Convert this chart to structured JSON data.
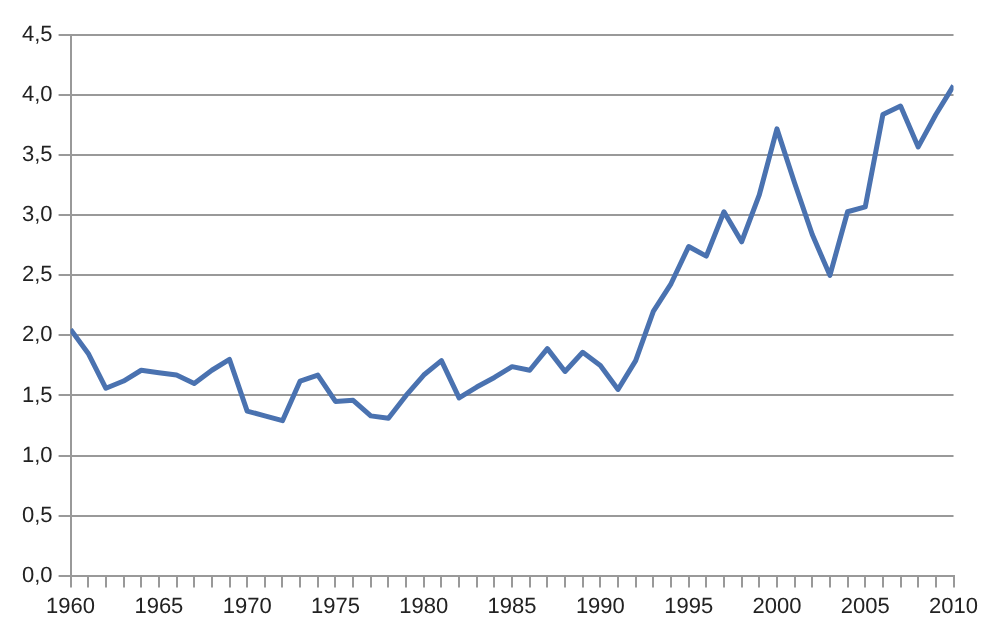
{
  "chart_data": {
    "type": "line",
    "x": [
      1960,
      1961,
      1962,
      1963,
      1964,
      1965,
      1966,
      1967,
      1968,
      1969,
      1970,
      1971,
      1972,
      1973,
      1974,
      1975,
      1976,
      1977,
      1978,
      1979,
      1980,
      1981,
      1982,
      1983,
      1984,
      1985,
      1986,
      1987,
      1988,
      1989,
      1990,
      1991,
      1992,
      1993,
      1994,
      1995,
      1996,
      1997,
      1998,
      1999,
      2000,
      2001,
      2002,
      2003,
      2004,
      2005,
      2006,
      2007,
      2008,
      2009,
      2010
    ],
    "series": [
      {
        "color": "#4a72b0",
        "values": [
          2.05,
          1.85,
          1.56,
          1.62,
          1.71,
          1.69,
          1.67,
          1.6,
          1.71,
          1.8,
          1.37,
          1.33,
          1.29,
          1.62,
          1.67,
          1.45,
          1.46,
          1.33,
          1.31,
          1.5,
          1.67,
          1.79,
          1.48,
          1.57,
          1.65,
          1.74,
          1.71,
          1.89,
          1.7,
          1.86,
          1.75,
          1.55,
          1.79,
          2.2,
          2.43,
          2.74,
          2.66,
          3.03,
          2.78,
          3.17,
          3.72,
          3.27,
          2.84,
          2.5,
          3.03,
          3.07,
          3.84,
          3.91,
          3.57,
          3.84,
          4.08
        ]
      }
    ],
    "xlim": [
      1960,
      2010
    ],
    "xticks": [
      1960,
      {
        "value": 1961,
        "label": null
      },
      {
        "value": 1962,
        "label": null
      },
      {
        "value": 1963,
        "label": null
      },
      {
        "value": 1964,
        "label": null
      },
      1965,
      {
        "value": 1966,
        "label": null
      },
      {
        "value": 1967,
        "label": null
      },
      {
        "value": 1968,
        "label": null
      },
      {
        "value": 1969,
        "label": null
      },
      1970,
      {
        "value": 1971,
        "label": null
      },
      {
        "value": 1972,
        "label": null
      },
      {
        "value": 1973,
        "label": null
      },
      {
        "value": 1974,
        "label": null
      },
      1975,
      {
        "value": 1976,
        "label": null
      },
      {
        "value": 1977,
        "label": null
      },
      {
        "value": 1978,
        "label": null
      },
      {
        "value": 1979,
        "label": null
      },
      1980,
      {
        "value": 1981,
        "label": null
      },
      {
        "value": 1982,
        "label": null
      },
      {
        "value": 1983,
        "label": null
      },
      {
        "value": 1984,
        "label": null
      },
      1985,
      {
        "value": 1986,
        "label": null
      },
      {
        "value": 1987,
        "label": null
      },
      {
        "value": 1988,
        "label": null
      },
      {
        "value": 1989,
        "label": null
      },
      1990,
      {
        "value": 1991,
        "label": null
      },
      {
        "value": 1992,
        "label": null
      },
      {
        "value": 1993,
        "label": null
      },
      {
        "value": 1994,
        "label": null
      },
      1995,
      {
        "value": 1996,
        "label": null
      },
      {
        "value": 1997,
        "label": null
      },
      {
        "value": 1998,
        "label": null
      },
      {
        "value": 1999,
        "label": null
      },
      2000,
      {
        "value": 2001,
        "label": null
      },
      {
        "value": 2002,
        "label": null
      },
      {
        "value": 2003,
        "label": null
      },
      {
        "value": 2004,
        "label": null
      },
      2005,
      {
        "value": 2006,
        "label": null
      },
      {
        "value": 2007,
        "label": null
      },
      {
        "value": 2008,
        "label": null
      },
      {
        "value": 2009,
        "label": null
      },
      2010
    ],
    "ylim": [
      0,
      4.5
    ],
    "yticks": [
      {
        "value": 0,
        "label": "0,0"
      },
      {
        "value": 0.5,
        "label": "0,5"
      },
      {
        "value": 1,
        "label": "1,0"
      },
      {
        "value": 1.5,
        "label": "1,5"
      },
      {
        "value": 2,
        "label": "2,0"
      },
      {
        "value": 2.5,
        "label": "2,5"
      },
      {
        "value": 3,
        "label": "3,0"
      },
      {
        "value": 3.5,
        "label": "3,5"
      },
      {
        "value": 4,
        "label": "4,0"
      },
      {
        "value": 4.5,
        "label": "4,5"
      }
    ],
    "grid": "y",
    "legend": false,
    "marker": "none",
    "line_style": "solid"
  }
}
